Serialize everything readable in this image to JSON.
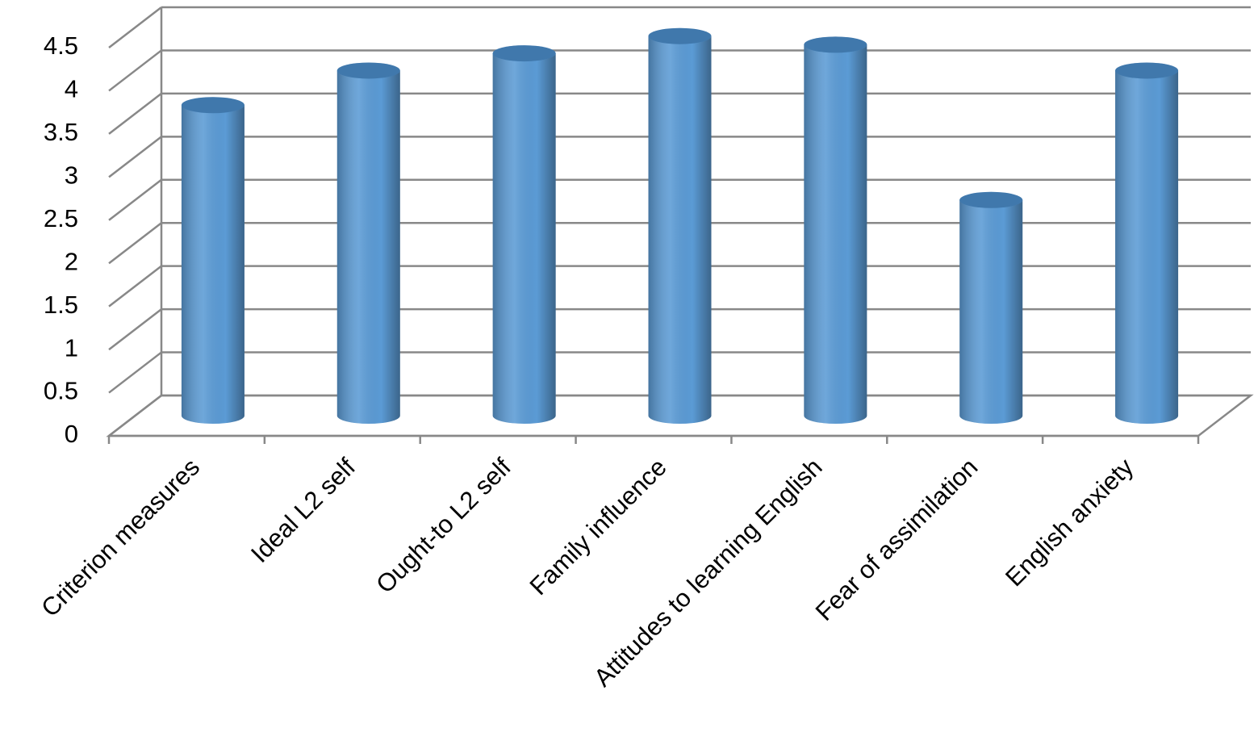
{
  "chart_data": {
    "type": "bar",
    "categories": [
      "Criterion measures",
      "Ideal L2 self",
      "Ought-to L2 self",
      "Family influence",
      "Attitudes to learning English",
      "Fear of assimilation",
      "English anxiety"
    ],
    "values": [
      3.6,
      4.0,
      4.2,
      4.4,
      4.3,
      2.5,
      4.0
    ],
    "color": "#5b9bd5",
    "ylim": [
      0,
      4.5
    ],
    "yticks": [
      0,
      0.5,
      1,
      1.5,
      2,
      2.5,
      3,
      3.5,
      4,
      4.5
    ],
    "grid": true
  }
}
